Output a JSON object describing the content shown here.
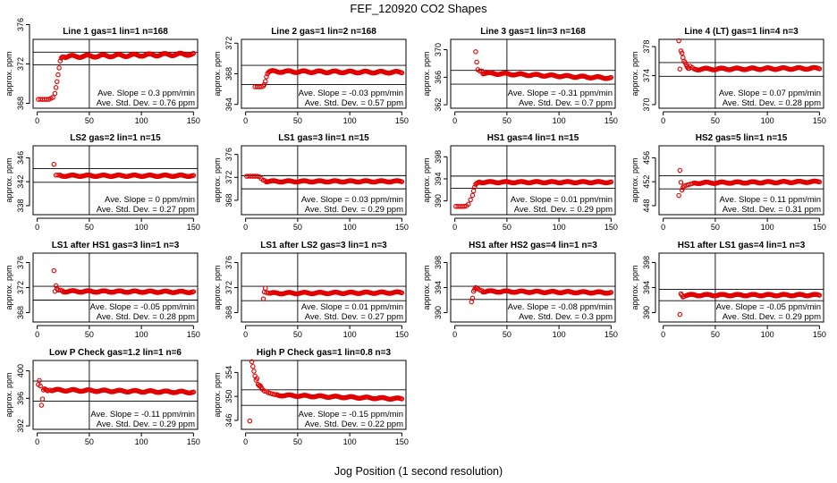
{
  "figure": {
    "title": "FEF_120920  CO2 Shapes",
    "xlabel": "Jog Position (1 second resolution)",
    "ylabel": "approx. ppm",
    "point_color": "#e00000",
    "x_ticks": [
      0,
      50,
      100,
      150
    ]
  },
  "chart_data": [
    {
      "type": "scatter",
      "title": "Line 1 gas=1 lin=1 n=168",
      "ylim": [
        367.5,
        374.5
      ],
      "yticks": [
        368,
        372,
        376
      ],
      "ref_lines": [
        373.2,
        371.9
      ],
      "slope_text": "Ave. Slope =  0.3  ppm/min",
      "stdev_text": "Ave. Std. Dev. =  0.76  ppm",
      "series": [
        {
          "x": [
            1,
            3,
            5,
            7,
            9,
            11,
            13,
            15,
            17,
            18,
            19,
            20,
            21,
            22,
            23,
            24,
            25,
            26
          ],
          "y": [
            368.4,
            368.4,
            368.4,
            368.4,
            368.4,
            368.4,
            368.5,
            368.6,
            369.0,
            369.6,
            370.2,
            370.9,
            371.6,
            372.3,
            372.6,
            372.7,
            372.7,
            372.7
          ]
        }
      ],
      "segments": [
        {
          "x0": 27,
          "x1": 150,
          "y0": 372.75,
          "y1": 373.0
        }
      ]
    },
    {
      "type": "scatter",
      "title": "Line 2 gas=1 lin=2 n=168",
      "ylim": [
        363.5,
        372.5
      ],
      "yticks": [
        364,
        368,
        372
      ],
      "ref_lines": [
        369.1,
        366.6
      ],
      "slope_text": "Ave. Slope =  -0.03  ppm/min",
      "stdev_text": "Ave. Std. Dev. =  0.57  ppm",
      "series": [
        {
          "x": [
            9,
            11,
            13,
            15,
            17,
            18,
            19,
            20,
            21,
            22,
            23
          ],
          "y": [
            366.3,
            366.3,
            366.3,
            366.3,
            366.4,
            366.6,
            367.0,
            367.6,
            368.0,
            368.2,
            368.3
          ]
        }
      ],
      "segments": [
        {
          "x0": 24,
          "x1": 150,
          "y0": 368.3,
          "y1": 368.2
        }
      ]
    },
    {
      "type": "scatter",
      "title": "Line 3 gas=1 lin=3 n=168",
      "ylim": [
        361.5,
        371.5
      ],
      "yticks": [
        362,
        366,
        370
      ],
      "ref_lines": [
        367.0,
        365.0
      ],
      "slope_text": "Ave. Slope =  -0.31  ppm/min",
      "stdev_text": "Ave. Std. Dev. =  0.7  ppm",
      "series": [
        {
          "x": [
            20,
            21,
            22,
            24,
            26
          ],
          "y": [
            369.7,
            368.2,
            367.1,
            366.9,
            366.9
          ]
        }
      ],
      "segments": [
        {
          "x0": 27,
          "x1": 150,
          "y0": 366.6,
          "y1": 365.9
        }
      ]
    },
    {
      "type": "scatter",
      "title": "Line 4 (LT) gas=1 lin=4 n=3",
      "ylim": [
        369.5,
        379
      ],
      "yticks": [
        370,
        374,
        378
      ],
      "ref_lines": [
        375.8,
        373.9
      ],
      "slope_text": "Ave. Slope =  0.07  ppm/min",
      "stdev_text": "Ave. Std. Dev. =  0.28  ppm",
      "series": [
        {
          "x": [
            15,
            16,
            17,
            18,
            19,
            20,
            21,
            22,
            23,
            24,
            25,
            26,
            28,
            30
          ],
          "y": [
            378.8,
            374.9,
            377.4,
            377.1,
            376.5,
            376.0,
            375.8,
            375.5,
            375.2,
            375.0,
            375.0,
            375.3,
            375.1,
            374.9
          ]
        }
      ],
      "segments": [
        {
          "x0": 31,
          "x1": 150,
          "y0": 374.9,
          "y1": 375.0
        }
      ]
    },
    {
      "type": "scatter",
      "title": "LS2 gas=2 lin=1 n=15",
      "ylim": [
        336.5,
        348
      ],
      "yticks": [
        338,
        342,
        346
      ],
      "ref_lines": [
        344.2,
        341.9
      ],
      "slope_text": "Ave. Slope =  0  ppm/min",
      "stdev_text": "Ave. Std. Dev. =  0.27  ppm",
      "series": [
        {
          "x": [
            16,
            18,
            20,
            22
          ],
          "y": [
            344.9,
            343.1,
            343.1,
            343.1
          ]
        }
      ],
      "segments": [
        {
          "x0": 23,
          "x1": 150,
          "y0": 343.0,
          "y1": 343.0
        }
      ]
    },
    {
      "type": "scatter",
      "title": "LS1 gas=3 lin=1 n=15",
      "ylim": [
        365.5,
        377.5
      ],
      "yticks": [
        368,
        372,
        376
      ],
      "ref_lines": [
        372.3,
        370.0
      ],
      "slope_text": "Ave. Slope =  0.03  ppm/min",
      "stdev_text": "Ave. Std. Dev. =  0.29  ppm",
      "series": [
        {
          "x": [
            1,
            3,
            5,
            7,
            9,
            11,
            13,
            15,
            17,
            19
          ],
          "y": [
            372.2,
            372.2,
            372.2,
            372.2,
            372.2,
            372.2,
            372.1,
            371.8,
            371.5,
            371.4
          ]
        }
      ],
      "segments": [
        {
          "x0": 20,
          "x1": 150,
          "y0": 371.3,
          "y1": 371.3
        }
      ]
    },
    {
      "type": "scatter",
      "title": "HS1 gas=4 lin=1 n=15",
      "ylim": [
        387.5,
        400
      ],
      "yticks": [
        390,
        394,
        398
      ],
      "ref_lines": [
        394.5,
        392.3
      ],
      "slope_text": "Ave. Slope =  0.01  ppm/min",
      "stdev_text": "Ave. Std. Dev. =  0.29  ppm",
      "series": [
        {
          "x": [
            1,
            3,
            5,
            7,
            9,
            11,
            13,
            15,
            17,
            18,
            19,
            20,
            21,
            22,
            23,
            24
          ],
          "y": [
            389.0,
            389.0,
            389.0,
            389.0,
            389.0,
            389.1,
            389.4,
            390.2,
            391.0,
            391.8,
            392.5,
            393.0,
            393.2,
            393.3,
            393.4,
            393.4
          ]
        }
      ],
      "segments": [
        {
          "x0": 25,
          "x1": 150,
          "y0": 393.4,
          "y1": 393.4
        }
      ]
    },
    {
      "type": "scatter",
      "title": "HS2 gas=5 lin=1 n=15",
      "ylim": [
        446.5,
        458
      ],
      "yticks": [
        448,
        452,
        456
      ],
      "ref_lines": [
        453.0,
        450.8
      ],
      "slope_text": "Ave. Slope =  0.11  ppm/min",
      "stdev_text": "Ave. Std. Dev. =  0.31  ppm",
      "series": [
        {
          "x": [
            15,
            16,
            17,
            18,
            19,
            20,
            22,
            24,
            26,
            28,
            30
          ],
          "y": [
            449.7,
            453.9,
            451.9,
            450.6,
            451.0,
            451.3,
            451.4,
            451.5,
            451.6,
            451.7,
            451.8
          ]
        }
      ],
      "segments": [
        {
          "x0": 31,
          "x1": 150,
          "y0": 451.8,
          "y1": 452.0
        }
      ]
    },
    {
      "type": "scatter",
      "title": "LS1 after HS1 gas=3 lin=1 n=3",
      "ylim": [
        366.5,
        377.5
      ],
      "yticks": [
        368,
        372,
        376
      ],
      "ref_lines": [
        372.2,
        370.0
      ],
      "slope_text": "Ave. Slope =  -0.05  ppm/min",
      "stdev_text": "Ave. Std. Dev. =  0.28  ppm",
      "series": [
        {
          "x": [
            16,
            17,
            18,
            19,
            20,
            22,
            24
          ],
          "y": [
            374.7,
            371.4,
            372.3,
            371.8,
            371.6,
            371.6,
            371.5
          ]
        }
      ],
      "segments": [
        {
          "x0": 25,
          "x1": 150,
          "y0": 371.4,
          "y1": 371.3
        }
      ]
    },
    {
      "type": "scatter",
      "title": "LS1 after LS2 gas=3 lin=1 n=3",
      "ylim": [
        366.5,
        377.5
      ],
      "yticks": [
        368,
        372,
        376
      ],
      "ref_lines": [
        372.2,
        369.9
      ],
      "slope_text": "Ave. Slope =  0.01  ppm/min",
      "stdev_text": "Ave. Std. Dev. =  0.27  ppm",
      "series": [
        {
          "x": [
            17,
            18,
            19,
            20,
            22,
            24
          ],
          "y": [
            370.2,
            371.3,
            371.9,
            371.2,
            371.1,
            371.1
          ]
        }
      ],
      "segments": [
        {
          "x0": 25,
          "x1": 150,
          "y0": 371.1,
          "y1": 371.2
        }
      ]
    },
    {
      "type": "scatter",
      "title": "HS1 after HS2 gas=4 lin=1 n=3",
      "ylim": [
        388.5,
        399.5
      ],
      "yticks": [
        390,
        394,
        398
      ],
      "ref_lines": [
        394.2,
        392.1
      ],
      "slope_text": "Ave. Slope =  -0.08  ppm/min",
      "stdev_text": "Ave. Std. Dev. =  0.3  ppm",
      "series": [
        {
          "x": [
            16,
            17,
            18,
            19,
            20,
            21,
            22,
            24,
            26
          ],
          "y": [
            391.7,
            392.3,
            393.4,
            393.7,
            394.0,
            393.9,
            393.8,
            393.6,
            393.5
          ]
        }
      ],
      "segments": [
        {
          "x0": 27,
          "x1": 150,
          "y0": 393.4,
          "y1": 393.2
        }
      ]
    },
    {
      "type": "scatter",
      "title": "HS1 after LS1 gas=4 lin=1 n=3",
      "ylim": [
        388.5,
        399.5
      ],
      "yticks": [
        390,
        394,
        398
      ],
      "ref_lines": [
        393.7,
        391.9
      ],
      "slope_text": "Ave. Slope =  -0.05  ppm/min",
      "stdev_text": "Ave. Std. Dev. =  0.29  ppm",
      "series": [
        {
          "x": [
            16,
            17,
            18,
            19,
            20,
            22
          ],
          "y": [
            389.7,
            393.0,
            392.8,
            392.5,
            392.6,
            392.7
          ]
        }
      ],
      "segments": [
        {
          "x0": 23,
          "x1": 150,
          "y0": 392.8,
          "y1": 392.8
        }
      ]
    },
    {
      "type": "scatter",
      "title": "Low P Check gas=1.2 lin=1 n=6",
      "ylim": [
        391.5,
        401.5
      ],
      "yticks": [
        392,
        396,
        400
      ],
      "ref_lines": [
        398.5,
        395.6
      ],
      "slope_text": "Ave. Slope =  -0.11  ppm/min",
      "stdev_text": "Ave. Std. Dev. =  0.29  ppm",
      "series": [
        {
          "x": [
            1,
            2,
            3,
            4,
            5,
            6,
            7,
            8,
            9,
            10,
            12,
            14
          ],
          "y": [
            398.0,
            398.6,
            397.8,
            395.0,
            395.9,
            397.2,
            397.4,
            397.3,
            397.2,
            397.1,
            397.2,
            397.1
          ]
        }
      ],
      "segments": [
        {
          "x0": 15,
          "x1": 150,
          "y0": 397.2,
          "y1": 396.9
        }
      ]
    },
    {
      "type": "scatter",
      "title": "High P Check gas=1 lin=0.8 n=3",
      "ylim": [
        344.5,
        356
      ],
      "yticks": [
        346,
        350,
        354
      ],
      "ref_lines": [
        351.1,
        348.5
      ],
      "slope_text": "Ave. Slope =  -0.15  ppm/min",
      "stdev_text": "Ave. Std. Dev. =  0.22  ppm",
      "series": [
        {
          "x": [
            4,
            6,
            7,
            8,
            9,
            10,
            11,
            12,
            13,
            14,
            15,
            16,
            18,
            20,
            22,
            24,
            26,
            28,
            30
          ],
          "y": [
            345.9,
            355.8,
            355.0,
            354.2,
            353.4,
            352.7,
            353.0,
            352.0,
            351.8,
            351.8,
            351.5,
            351.2,
            350.9,
            350.8,
            350.6,
            350.5,
            350.4,
            350.3,
            350.3
          ]
        }
      ],
      "segments": [
        {
          "x0": 31,
          "x1": 150,
          "y0": 350.2,
          "y1": 349.6
        }
      ]
    }
  ]
}
